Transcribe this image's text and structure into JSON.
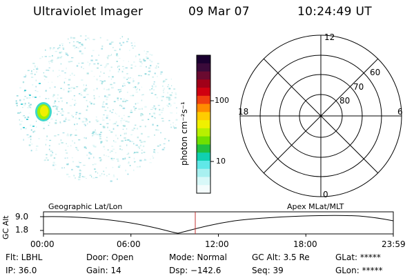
{
  "header": {
    "instrument": "Ultraviolet Imager",
    "date": "09 Mar 07",
    "time": "10:24:49 UT"
  },
  "colorbar": {
    "unit_label": "photon cm⁻²s⁻¹",
    "ticks": [
      "100",
      "10"
    ],
    "colors": [
      "#1a0030",
      "#3a0a3a",
      "#6a0a30",
      "#a00018",
      "#d00010",
      "#f04010",
      "#ff8c00",
      "#ffcc00",
      "#f0f000",
      "#b8f000",
      "#70e000",
      "#20c040",
      "#10d0b0",
      "#60e8e8",
      "#a8f0f0",
      "#d8f8f8",
      "#f4fcfc"
    ]
  },
  "polar_plot": {
    "mlt_labels": {
      "top": "12",
      "left": "18",
      "right": "6",
      "bottom": "0"
    },
    "lat_labels": [
      "60",
      "70",
      "80"
    ]
  },
  "alt_plot": {
    "y_axis_label": "GC Alt",
    "y_ticks": [
      "9.0",
      "1.8"
    ],
    "left_label": "Geographic Lat/Lon",
    "right_label": "Apex MLat/MLT",
    "x_ticks": [
      "00:00",
      "06:00",
      "12:00",
      "18:00",
      "23:59"
    ],
    "current_time_fraction": 0.434,
    "marker_color": "#c03030"
  },
  "info": {
    "flt": "Flt: LBHL",
    "ip": "IP: 36.0",
    "door": "Door: Open",
    "gain": "Gain: 14",
    "mode": "Mode: Normal",
    "dsp": "Dsp: −142.6",
    "gc_alt": "GC Alt: 3.5 Re",
    "seq": "Seq: 39",
    "glat": "GLat: *****",
    "glon": "GLon: *****"
  }
}
